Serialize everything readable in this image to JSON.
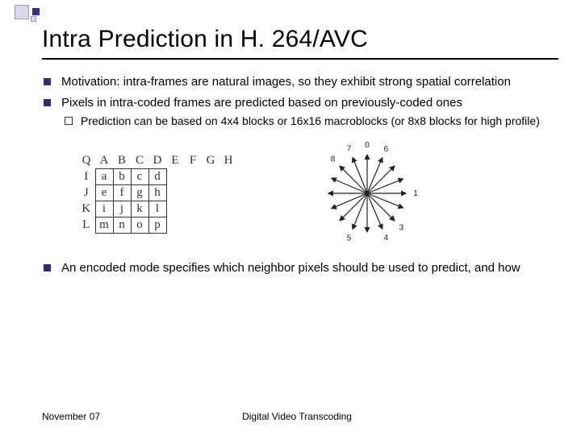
{
  "title": "Intra Prediction in H. 264/AVC",
  "bullets": {
    "b1": "Motivation: intra-frames are natural images, so they exhibit strong spatial correlation",
    "b2": "Pixels in intra-coded frames are predicted based on previously-coded ones",
    "b2s1": "Prediction can be based on 4x4 blocks or 16x16 macroblocks (or 8x8 blocks for high profile)",
    "b3": "An encoded mode specifies which neighbor pixels should be used to predict, and how"
  },
  "grid": {
    "top": [
      "Q",
      "A",
      "B",
      "C",
      "D",
      "E",
      "F",
      "G",
      "H"
    ],
    "rows": [
      [
        "I",
        "a",
        "b",
        "c",
        "d"
      ],
      [
        "J",
        "e",
        "f",
        "g",
        "h"
      ],
      [
        "K",
        "i",
        "j",
        "k",
        "l"
      ],
      [
        "L",
        "m",
        "n",
        "o",
        "p"
      ]
    ]
  },
  "arrows": {
    "labels": [
      "0",
      "1",
      "3",
      "4",
      "5",
      "6",
      "7",
      "8"
    ],
    "directions": [
      {
        "angle": -90,
        "label": "0"
      },
      {
        "angle": 0,
        "label": "1"
      },
      {
        "angle": 45,
        "label": "3"
      },
      {
        "angle": 67,
        "label": "4"
      },
      {
        "angle": 112,
        "label": "5"
      },
      {
        "angle": -67,
        "label": "6"
      },
      {
        "angle": -112,
        "label": "7"
      },
      {
        "angle": -135,
        "label": "8"
      },
      {
        "angle": 22,
        "label": ""
      },
      {
        "angle": 90,
        "label": ""
      },
      {
        "angle": 135,
        "label": ""
      },
      {
        "angle": 157,
        "label": ""
      },
      {
        "angle": 180,
        "label": ""
      },
      {
        "angle": -157,
        "label": ""
      },
      {
        "angle": -45,
        "label": ""
      },
      {
        "angle": -22,
        "label": ""
      }
    ],
    "color": "#222222"
  },
  "footer": {
    "left": "November 07",
    "center": "Digital Video Transcoding"
  }
}
